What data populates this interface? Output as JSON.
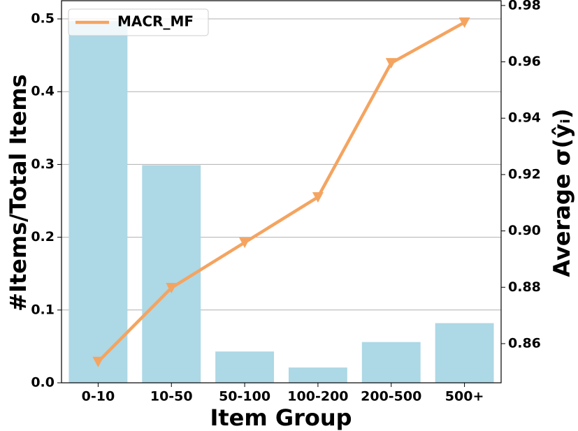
{
  "chart_data": {
    "type": "bar",
    "xlabel": "Item Group",
    "ylabel": "#Items/Total Items",
    "y2label": "Average σ(ŷᵢ)",
    "categories": [
      "0-10",
      "10-50",
      "50-100",
      "100-200",
      "200-500",
      "500+"
    ],
    "series": [
      {
        "type": "bar",
        "color": "#add8e6",
        "values": [
          0.497,
          0.299,
          0.043,
          0.021,
          0.056,
          0.082
        ]
      },
      {
        "type": "line",
        "name": "MACR_MF",
        "color": "#f4a460",
        "axis": "y2",
        "values": [
          0.8536,
          0.8798,
          0.8959,
          0.912,
          0.9596,
          0.974
        ]
      }
    ],
    "ylim": [
      0,
      0.525
    ],
    "yticks": [
      {
        "value": 0,
        "label": "0.0"
      },
      0.1,
      0.2,
      0.3,
      0.4,
      0.5
    ],
    "y2lim": [
      0.8461,
      0.9817
    ],
    "y2ticks": [
      0.86,
      0.88,
      {
        "value": 0.9,
        "label": "0.90"
      },
      0.92,
      0.94,
      0.96,
      0.98
    ],
    "grid": true,
    "legend": "upper left"
  }
}
